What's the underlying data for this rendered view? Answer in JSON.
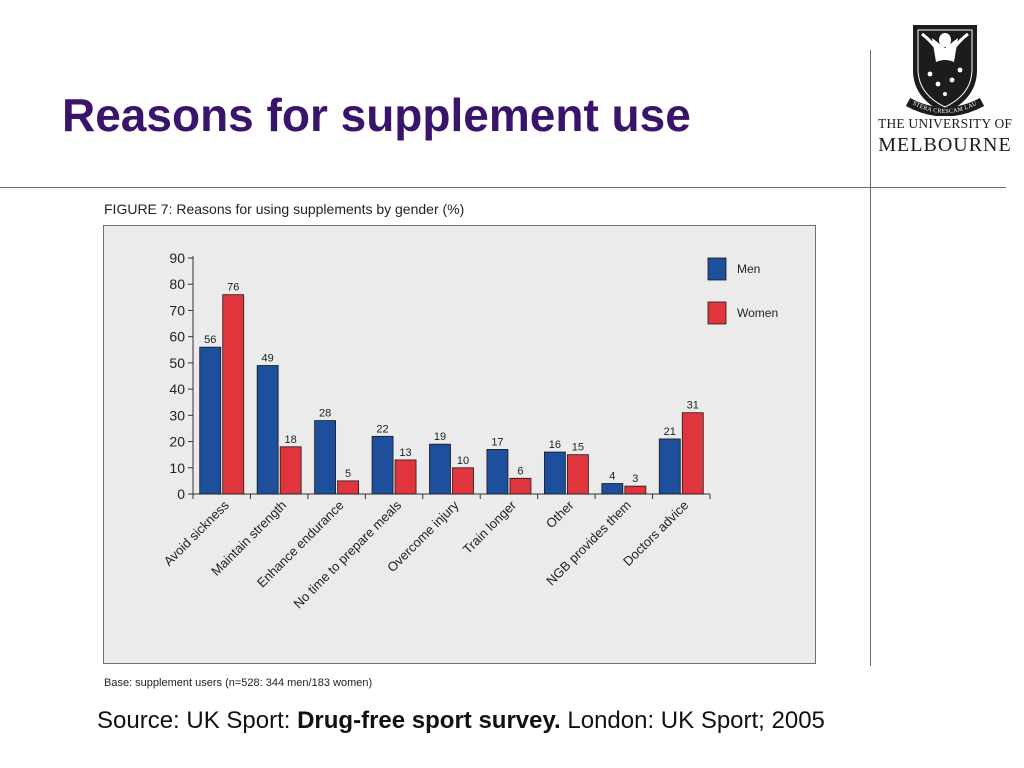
{
  "slide": {
    "title": "Reasons for supplement use",
    "source_prefix": "Source: UK Sport: ",
    "source_bold": "Drug-free sport survey.",
    "source_suffix": " London: UK Sport; 2005"
  },
  "logo": {
    "line1": "THE UNIVERSITY OF",
    "line2": "MELBOURNE",
    "motto": "POSTERA CRESCAM LAUDE"
  },
  "figure": {
    "title": "FIGURE 7: Reasons for using supplements by gender (%)",
    "base_note": "Base: supplement users (n=528: 344 men/183 women)"
  },
  "chart_data": {
    "type": "bar",
    "title": "FIGURE 7: Reasons for using supplements by gender (%)",
    "xlabel": "",
    "ylabel": "",
    "categories": [
      "Avoid sickness",
      "Maintain strength",
      "Enhance endurance",
      "No time to prepare meals",
      "Overcome injury",
      "Train longer",
      "Other",
      "NGB provides them",
      "Doctors advice"
    ],
    "series": [
      {
        "name": "Men",
        "color": "#1d4f9c",
        "values": [
          56,
          49,
          28,
          22,
          19,
          17,
          16,
          4,
          21
        ]
      },
      {
        "name": "Women",
        "color": "#e0353d",
        "values": [
          76,
          18,
          5,
          13,
          10,
          6,
          15,
          3,
          31
        ]
      }
    ],
    "ylim": [
      0,
      90
    ],
    "yticks": [
      0,
      10,
      20,
      30,
      40,
      50,
      60,
      70,
      80,
      90
    ],
    "grid": false,
    "legend_position": "top-right",
    "data_labels": true
  },
  "colors": {
    "title": "#3a136a",
    "men": "#1d4f9c",
    "women": "#e0353d",
    "panel": "#ebebeb"
  }
}
